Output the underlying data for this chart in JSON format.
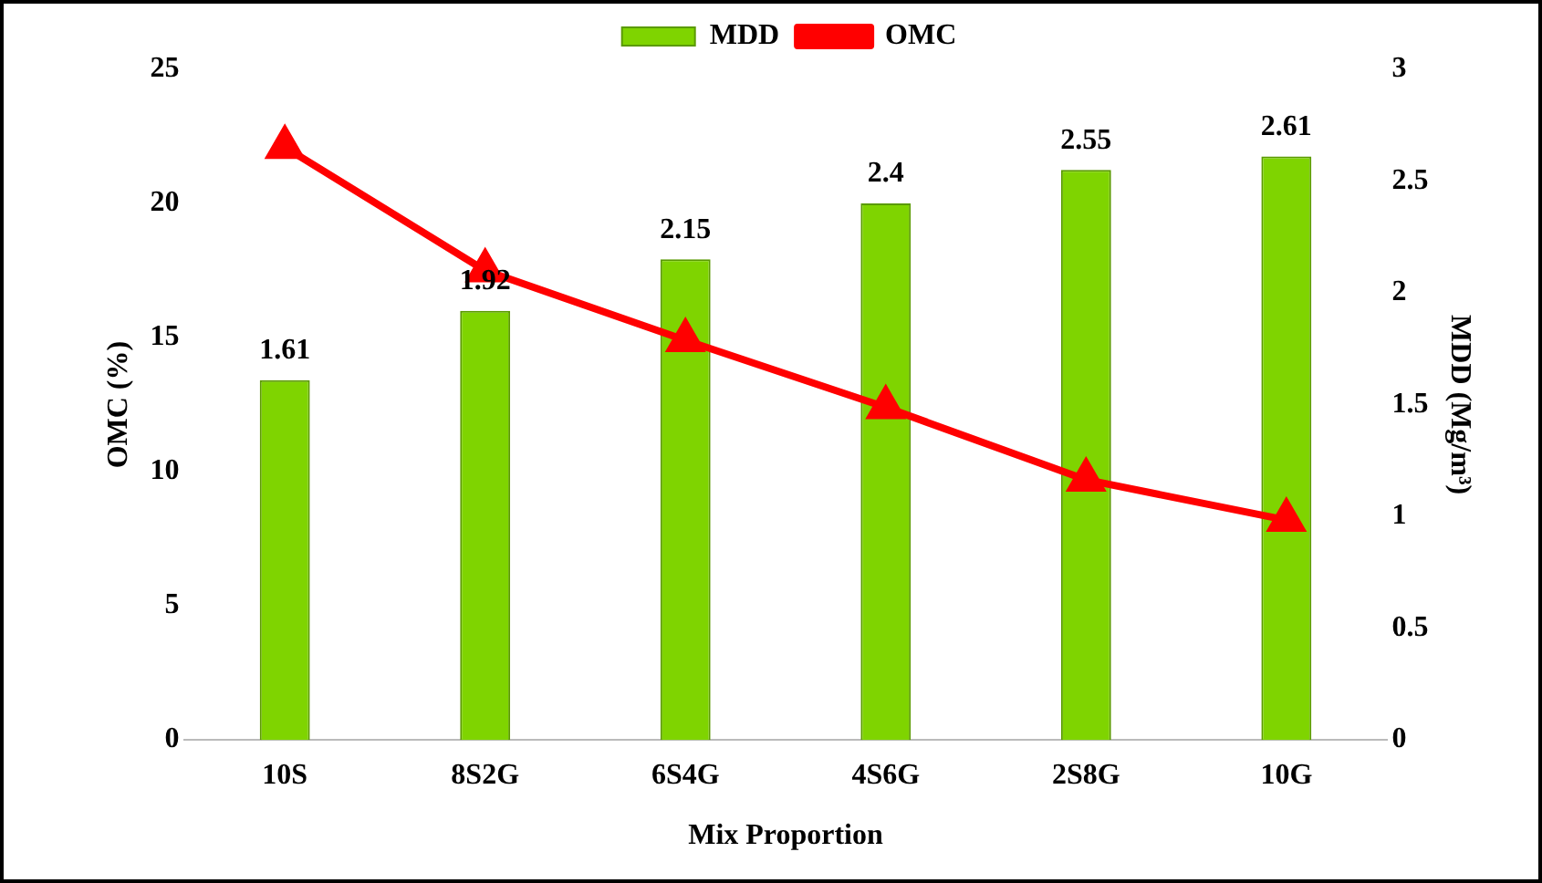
{
  "chart_data": {
    "type": "bar",
    "xlabel": "Mix Proportion",
    "ylabel": "OMC (%)",
    "y2label": "MDD (Mg/m³)",
    "categories": [
      "10S",
      "8S2G",
      "6S4G",
      "4S6G",
      "2S8G",
      "10G"
    ],
    "series": [
      {
        "name": "MDD",
        "axis": "y2",
        "color": "#7fd400",
        "values": [
          1.61,
          1.92,
          2.15,
          2.4,
          2.55,
          2.61
        ],
        "value_labels": [
          "1.61",
          "1.92",
          "2.15",
          "2.4",
          "2.55",
          "2.61"
        ]
      },
      {
        "name": "OMC",
        "type": "line",
        "color": "#ff0000",
        "values": [
          22.1,
          17.5,
          14.9,
          12.4,
          9.7,
          8.2
        ]
      }
    ],
    "ylim": [
      0,
      25
    ],
    "yticks": [
      0,
      5,
      10,
      15,
      20,
      25
    ],
    "y2lim": [
      0,
      3
    ],
    "y2ticks": [
      0,
      0.5,
      1,
      1.5,
      2,
      2.5,
      3
    ],
    "legend": "top",
    "grid": false,
    "marker": "triangle",
    "line_style": "solid"
  }
}
